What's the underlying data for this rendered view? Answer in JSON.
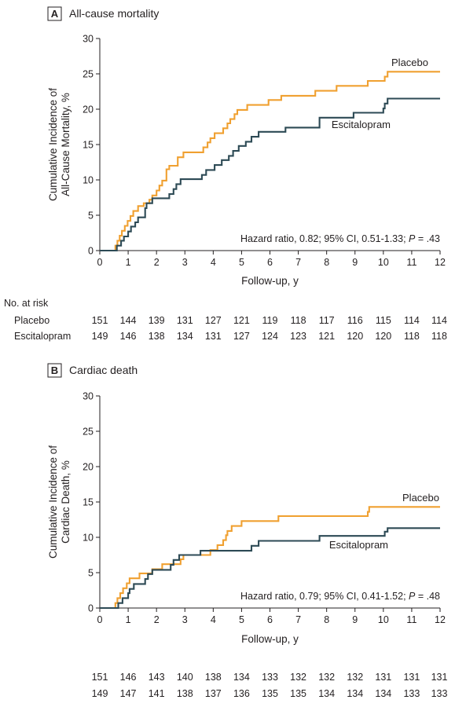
{
  "colors": {
    "placebo": "#f0a030",
    "escitalopram": "#2d4a55",
    "text": "#231f20"
  },
  "risk_table": {
    "header": "No. at risk",
    "row_labels": [
      "Placebo",
      "Escitalopram"
    ]
  },
  "chart_data": [
    {
      "type": "line",
      "panel_letter": "A",
      "title": "All-cause mortality",
      "xlabel": "Follow-up, y",
      "ylabel_lines": [
        "Cumulative Incidence of",
        "All-Cause Mortality, %"
      ],
      "xlim": [
        0,
        12
      ],
      "ylim": [
        0,
        30
      ],
      "x_ticks": [
        "0",
        "1",
        "2",
        "3",
        "4",
        "5",
        "6",
        "7",
        "8",
        "9",
        "10",
        "11",
        "12"
      ],
      "y_ticks": [
        "0",
        "5",
        "10",
        "15",
        "20",
        "25",
        "30"
      ],
      "hazard_text_parts": [
        "Hazard ratio, 0.82; 95% CI, 0.51-1.33; ",
        "P",
        " = .43"
      ],
      "series": [
        {
          "name": "Placebo",
          "color_key": "placebo",
          "steps": [
            [
              0,
              0
            ],
            [
              0.55,
              0.7
            ],
            [
              0.62,
              1.4
            ],
            [
              0.7,
              2.1
            ],
            [
              0.78,
              2.8
            ],
            [
              0.88,
              3.5
            ],
            [
              0.98,
              4.2
            ],
            [
              1.08,
              4.9
            ],
            [
              1.18,
              5.6
            ],
            [
              1.35,
              6.3
            ],
            [
              1.55,
              6.7
            ],
            [
              1.75,
              7.2
            ],
            [
              1.85,
              7.8
            ],
            [
              2.0,
              8.5
            ],
            [
              2.1,
              9.2
            ],
            [
              2.2,
              9.9
            ],
            [
              2.35,
              11.5
            ],
            [
              2.45,
              12.0
            ],
            [
              2.75,
              13.2
            ],
            [
              2.95,
              13.9
            ],
            [
              3.65,
              14.6
            ],
            [
              3.8,
              15.3
            ],
            [
              3.9,
              15.9
            ],
            [
              4.05,
              16.6
            ],
            [
              4.35,
              17.3
            ],
            [
              4.5,
              18.0
            ],
            [
              4.6,
              18.6
            ],
            [
              4.75,
              19.3
            ],
            [
              4.85,
              19.9
            ],
            [
              5.2,
              20.6
            ],
            [
              5.95,
              21.3
            ],
            [
              6.4,
              21.9
            ],
            [
              7.6,
              22.6
            ],
            [
              8.35,
              23.3
            ],
            [
              9.45,
              24.0
            ],
            [
              10.05,
              24.6
            ],
            [
              10.15,
              25.3
            ],
            [
              12,
              25.3
            ]
          ]
        },
        {
          "name": "Escitalopram",
          "color_key": "escitalopram",
          "steps": [
            [
              0,
              0
            ],
            [
              0.6,
              0.7
            ],
            [
              0.75,
              1.4
            ],
            [
              0.85,
              2.0
            ],
            [
              1.0,
              2.7
            ],
            [
              1.1,
              3.4
            ],
            [
              1.25,
              4.0
            ],
            [
              1.35,
              4.7
            ],
            [
              1.6,
              6.0
            ],
            [
              1.65,
              6.7
            ],
            [
              1.85,
              7.4
            ],
            [
              2.45,
              8.0
            ],
            [
              2.6,
              8.7
            ],
            [
              2.7,
              9.4
            ],
            [
              2.85,
              10.1
            ],
            [
              3.6,
              10.7
            ],
            [
              3.75,
              11.4
            ],
            [
              4.05,
              12.1
            ],
            [
              4.3,
              12.8
            ],
            [
              4.55,
              13.4
            ],
            [
              4.7,
              14.1
            ],
            [
              4.9,
              14.8
            ],
            [
              5.15,
              15.4
            ],
            [
              5.35,
              16.1
            ],
            [
              5.6,
              16.8
            ],
            [
              6.55,
              17.4
            ],
            [
              7.75,
              18.8
            ],
            [
              8.95,
              19.5
            ],
            [
              10.0,
              20.1
            ],
            [
              10.05,
              20.8
            ],
            [
              10.15,
              21.5
            ],
            [
              12,
              21.5
            ]
          ]
        }
      ],
      "at_risk": {
        "Placebo": [
          151,
          144,
          139,
          131,
          127,
          121,
          119,
          118,
          117,
          116,
          115,
          114,
          114
        ],
        "Escitalopram": [
          149,
          146,
          138,
          134,
          131,
          127,
          124,
          123,
          121,
          120,
          120,
          118,
          118
        ]
      }
    },
    {
      "type": "line",
      "panel_letter": "B",
      "title": "Cardiac death",
      "xlabel": "Follow-up, y",
      "ylabel_lines": [
        "Cumulative Incidence of",
        "Cardiac Death, %"
      ],
      "xlim": [
        0,
        12
      ],
      "ylim": [
        0,
        30
      ],
      "x_ticks": [
        "0",
        "1",
        "2",
        "3",
        "4",
        "5",
        "6",
        "7",
        "8",
        "9",
        "10",
        "11",
        "12"
      ],
      "y_ticks": [
        "0",
        "5",
        "10",
        "15",
        "20",
        "25",
        "30"
      ],
      "hazard_text_parts": [
        "Hazard ratio, 0.79; 95% CI, 0.41-1.52; ",
        "P",
        " = .48"
      ],
      "series": [
        {
          "name": "Placebo",
          "color_key": "placebo",
          "steps": [
            [
              0,
              0
            ],
            [
              0.55,
              0.7
            ],
            [
              0.62,
              1.4
            ],
            [
              0.72,
              2.1
            ],
            [
              0.82,
              2.8
            ],
            [
              0.95,
              3.5
            ],
            [
              1.05,
              4.2
            ],
            [
              1.4,
              4.9
            ],
            [
              1.85,
              5.5
            ],
            [
              2.2,
              6.2
            ],
            [
              2.85,
              6.9
            ],
            [
              2.95,
              7.5
            ],
            [
              3.9,
              8.2
            ],
            [
              4.15,
              8.9
            ],
            [
              4.35,
              9.6
            ],
            [
              4.45,
              10.3
            ],
            [
              4.5,
              10.9
            ],
            [
              4.65,
              11.6
            ],
            [
              5.0,
              12.3
            ],
            [
              6.3,
              13.0
            ],
            [
              9.45,
              13.6
            ],
            [
              9.5,
              14.3
            ],
            [
              12,
              14.3
            ]
          ]
        },
        {
          "name": "Escitalopram",
          "color_key": "escitalopram",
          "steps": [
            [
              0,
              0
            ],
            [
              0.65,
              0.7
            ],
            [
              0.8,
              1.4
            ],
            [
              1.0,
              2.1
            ],
            [
              1.05,
              2.7
            ],
            [
              1.2,
              3.4
            ],
            [
              1.6,
              4.1
            ],
            [
              1.7,
              4.8
            ],
            [
              1.85,
              5.4
            ],
            [
              2.5,
              6.1
            ],
            [
              2.6,
              6.8
            ],
            [
              2.8,
              7.5
            ],
            [
              3.55,
              8.1
            ],
            [
              5.35,
              8.8
            ],
            [
              5.6,
              9.5
            ],
            [
              7.75,
              10.2
            ],
            [
              10.05,
              10.8
            ],
            [
              10.15,
              11.3
            ],
            [
              12,
              11.3
            ]
          ]
        }
      ],
      "at_risk": {
        "Placebo": [
          151,
          146,
          143,
          140,
          138,
          134,
          133,
          132,
          132,
          132,
          131,
          131,
          131
        ],
        "Escitalopram": [
          149,
          147,
          141,
          138,
          137,
          136,
          135,
          135,
          134,
          134,
          134,
          133,
          133
        ]
      }
    }
  ]
}
